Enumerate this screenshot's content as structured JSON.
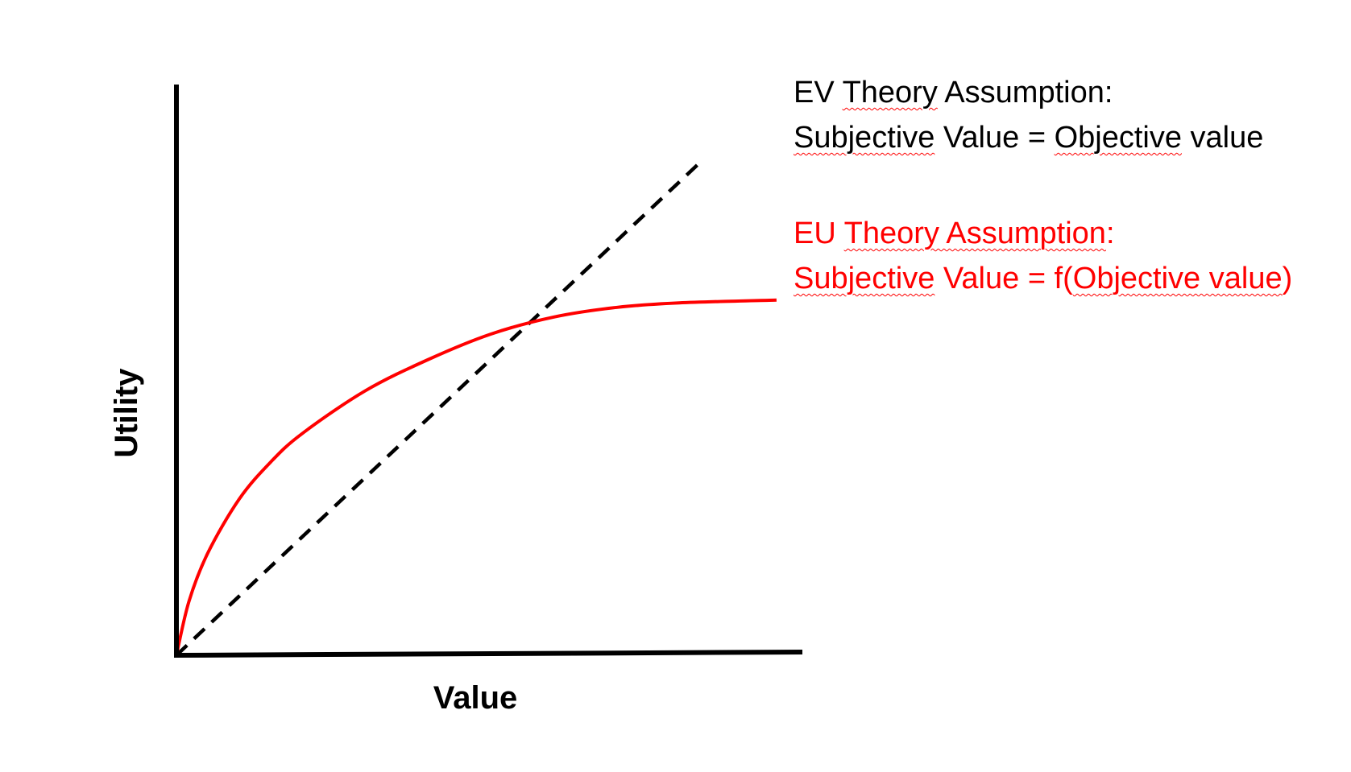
{
  "chart_data": {
    "type": "line",
    "title": "",
    "xlabel": "Value",
    "ylabel": "Utility",
    "xlim": [
      0,
      1
    ],
    "ylim": [
      0,
      1
    ],
    "grid": false,
    "show_ticks": false,
    "series": [
      {
        "style": "dashed",
        "color": "#000000",
        "shape": "linear",
        "points": [
          [
            0,
            0
          ],
          [
            0.836,
            0.87
          ]
        ]
      },
      {
        "style": "solid",
        "color": "#ff0000",
        "shape": "concave",
        "points": [
          [
            0,
            0
          ],
          [
            0.02,
            0.095
          ],
          [
            0.05,
            0.18
          ],
          [
            0.1,
            0.275
          ],
          [
            0.15,
            0.34
          ],
          [
            0.2,
            0.39
          ],
          [
            0.3,
            0.465
          ],
          [
            0.4,
            0.52
          ],
          [
            0.5,
            0.565
          ],
          [
            0.6,
            0.595
          ],
          [
            0.7,
            0.612
          ],
          [
            0.8,
            0.62
          ],
          [
            0.955,
            0.625
          ]
        ]
      }
    ],
    "annotations": {
      "ev": {
        "line1_pre": "EV ",
        "line1_word": "Theory",
        "line1_post": " Assumption:",
        "line2_word1": "Subjective",
        "line2_mid": " Value = ",
        "line2_word2": "Objective",
        "line2_post": " value"
      },
      "eu": {
        "line1_pre": "EU ",
        "line1_underlined": "Theory Assumption",
        "line1_post": ":",
        "line2_underlined1": "Subjective",
        "line2_mid": " Value = f(",
        "line2_underlined2": "Objective value",
        "line2_post": ")"
      }
    }
  }
}
